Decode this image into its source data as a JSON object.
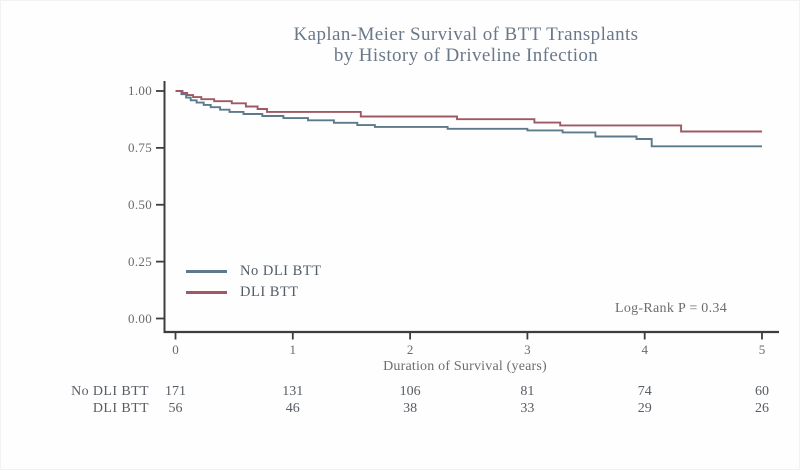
{
  "figure": {
    "title_line1": "Kaplan-Meier Survival of BTT Transplants",
    "title_line2": "by History of Driveline Infection"
  },
  "chart_data": {
    "type": "line",
    "subtype": "kaplan-meier-step-function",
    "title": "Kaplan-Meier Survival of BTT Transplants by History of Driveline Infection",
    "xlabel": "Duration of Survival (years)",
    "ylabel": "",
    "xlim": [
      0,
      5
    ],
    "ylim": [
      0.0,
      1.0
    ],
    "grid": false,
    "legend_position": "inside-lower-left",
    "annotation": "Log-Rank P = 0.34",
    "xticks": [
      0,
      1,
      2,
      3,
      4,
      5
    ],
    "yticks": [
      {
        "value": 1.0,
        "label": "1.00"
      },
      {
        "value": 0.75,
        "label": "0.75"
      },
      {
        "value": 0.5,
        "label": "0.50"
      },
      {
        "value": 0.25,
        "label": "0.25"
      },
      {
        "value": 0.0,
        "label": "0.00"
      }
    ],
    "legend": [
      {
        "label": "No DLI BTT",
        "color": "#5d7a8c"
      },
      {
        "label": "DLI BTT",
        "color": "#9e5a64"
      }
    ],
    "series": [
      {
        "name": "No DLI BTT",
        "color": "#5d7a8c",
        "steps": [
          [
            0,
            1.0
          ],
          [
            0.05,
            0.986
          ],
          [
            0.09,
            0.971
          ],
          [
            0.13,
            0.959
          ],
          [
            0.18,
            0.949
          ],
          [
            0.24,
            0.939
          ],
          [
            0.3,
            0.929
          ],
          [
            0.38,
            0.918
          ],
          [
            0.46,
            0.908
          ],
          [
            0.58,
            0.899
          ],
          [
            0.74,
            0.89
          ],
          [
            0.92,
            0.881
          ],
          [
            1.13,
            0.871
          ],
          [
            1.35,
            0.86
          ],
          [
            1.55,
            0.85
          ],
          [
            1.7,
            0.842
          ],
          [
            2.32,
            0.834
          ],
          [
            3.0,
            0.827
          ],
          [
            3.3,
            0.818
          ],
          [
            3.58,
            0.8
          ],
          [
            3.93,
            0.789
          ],
          [
            4.06,
            0.757
          ]
        ],
        "final_value": 0.757
      },
      {
        "name": "DLI BTT",
        "color": "#9e5a64",
        "steps": [
          [
            0,
            1.0
          ],
          [
            0.06,
            0.991
          ],
          [
            0.1,
            0.982
          ],
          [
            0.15,
            0.973
          ],
          [
            0.22,
            0.964
          ],
          [
            0.33,
            0.955
          ],
          [
            0.48,
            0.946
          ],
          [
            0.6,
            0.932
          ],
          [
            0.7,
            0.921
          ],
          [
            0.78,
            0.908
          ],
          [
            1.58,
            0.888
          ],
          [
            2.4,
            0.876
          ],
          [
            3.06,
            0.861
          ],
          [
            3.28,
            0.849
          ],
          [
            4.31,
            0.822
          ]
        ],
        "final_value": 0.822
      }
    ],
    "risk_table": {
      "time_points": [
        0,
        1,
        2,
        3,
        4,
        5
      ],
      "rows": [
        {
          "label": "No DLI BTT",
          "counts": [
            "171",
            "131",
            "106",
            "81",
            "74",
            "60"
          ]
        },
        {
          "label": "DLI BTT",
          "counts": [
            "56",
            "46",
            "38",
            "33",
            "29",
            "26"
          ]
        }
      ]
    },
    "colors": {
      "axis": "#3d3d3d",
      "tick_text": "#6a6a6a",
      "title_text": "#6b7889",
      "background": "#fefefe"
    }
  }
}
